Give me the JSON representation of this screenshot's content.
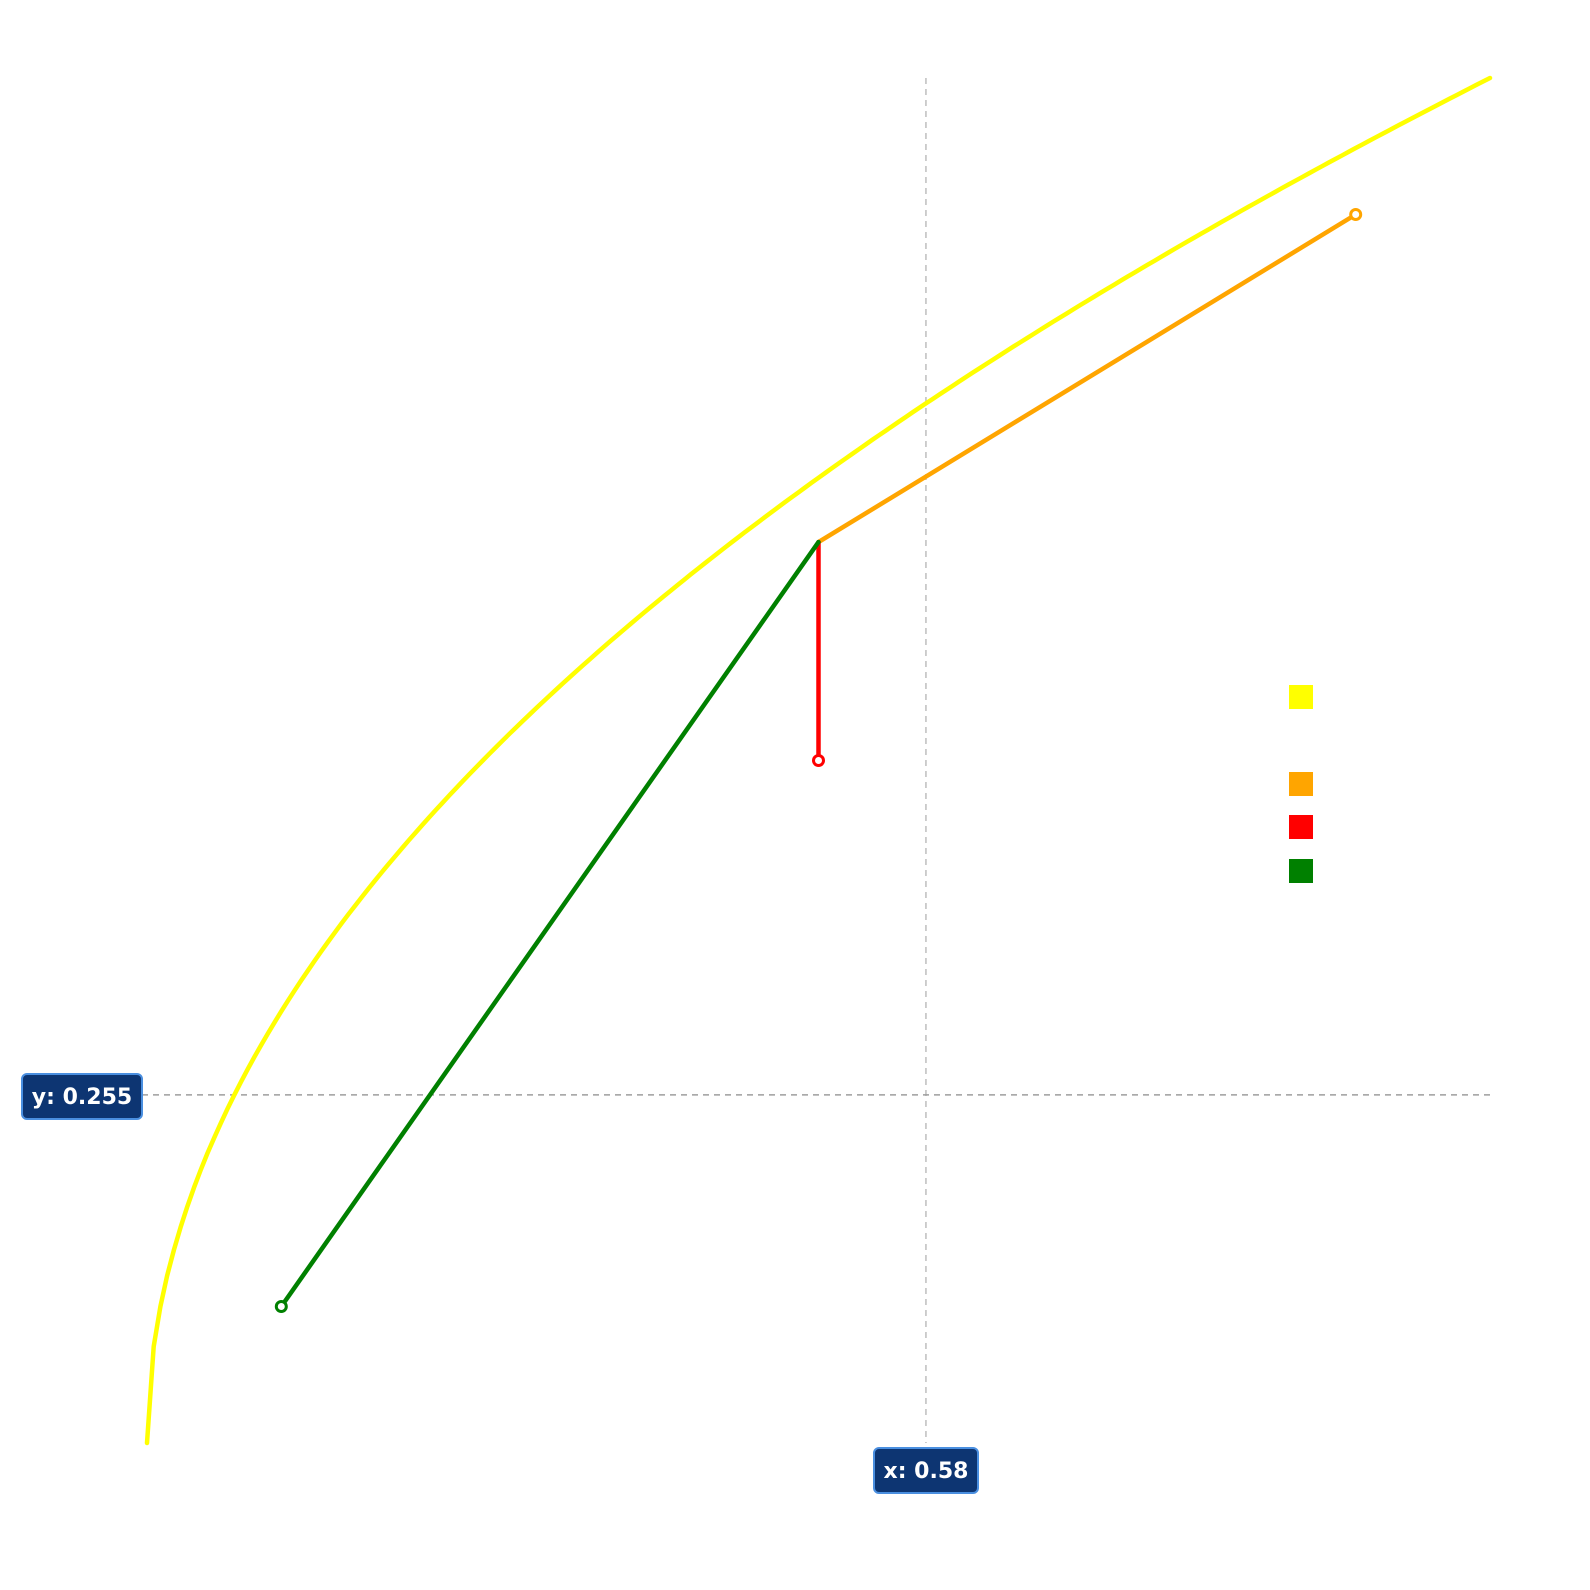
{
  "chart_data": {
    "type": "line",
    "title": "",
    "xlabel": "",
    "ylabel": "",
    "xlim": [
      0,
      1
    ],
    "ylim": [
      0,
      1
    ],
    "grid": false,
    "legend_position": "right",
    "crosshair": {
      "x": 0.58,
      "y": 0.255,
      "x_label": "x: 0.58",
      "y_label": "y: 0.255"
    },
    "series": [
      {
        "color": "#ffff00",
        "curve": "sqrt",
        "points": [
          [
            0.0,
            0.0
          ],
          [
            0.1,
            0.316
          ],
          [
            0.2,
            0.447
          ],
          [
            0.3,
            0.548
          ],
          [
            0.4,
            0.632
          ],
          [
            0.5,
            0.707
          ],
          [
            0.6,
            0.775
          ],
          [
            0.7,
            0.837
          ],
          [
            0.8,
            0.894
          ],
          [
            0.9,
            0.949
          ],
          [
            1.0,
            1.0
          ]
        ]
      },
      {
        "color": "#ffa500",
        "points": [
          [
            0.5,
            0.66
          ],
          [
            0.9,
            0.9
          ]
        ]
      },
      {
        "color": "#ff0000",
        "points": [
          [
            0.5,
            0.66
          ],
          [
            0.5,
            0.5
          ]
        ]
      },
      {
        "color": "#008000",
        "points": [
          [
            0.1,
            0.1
          ],
          [
            0.5,
            0.66
          ]
        ]
      }
    ]
  }
}
